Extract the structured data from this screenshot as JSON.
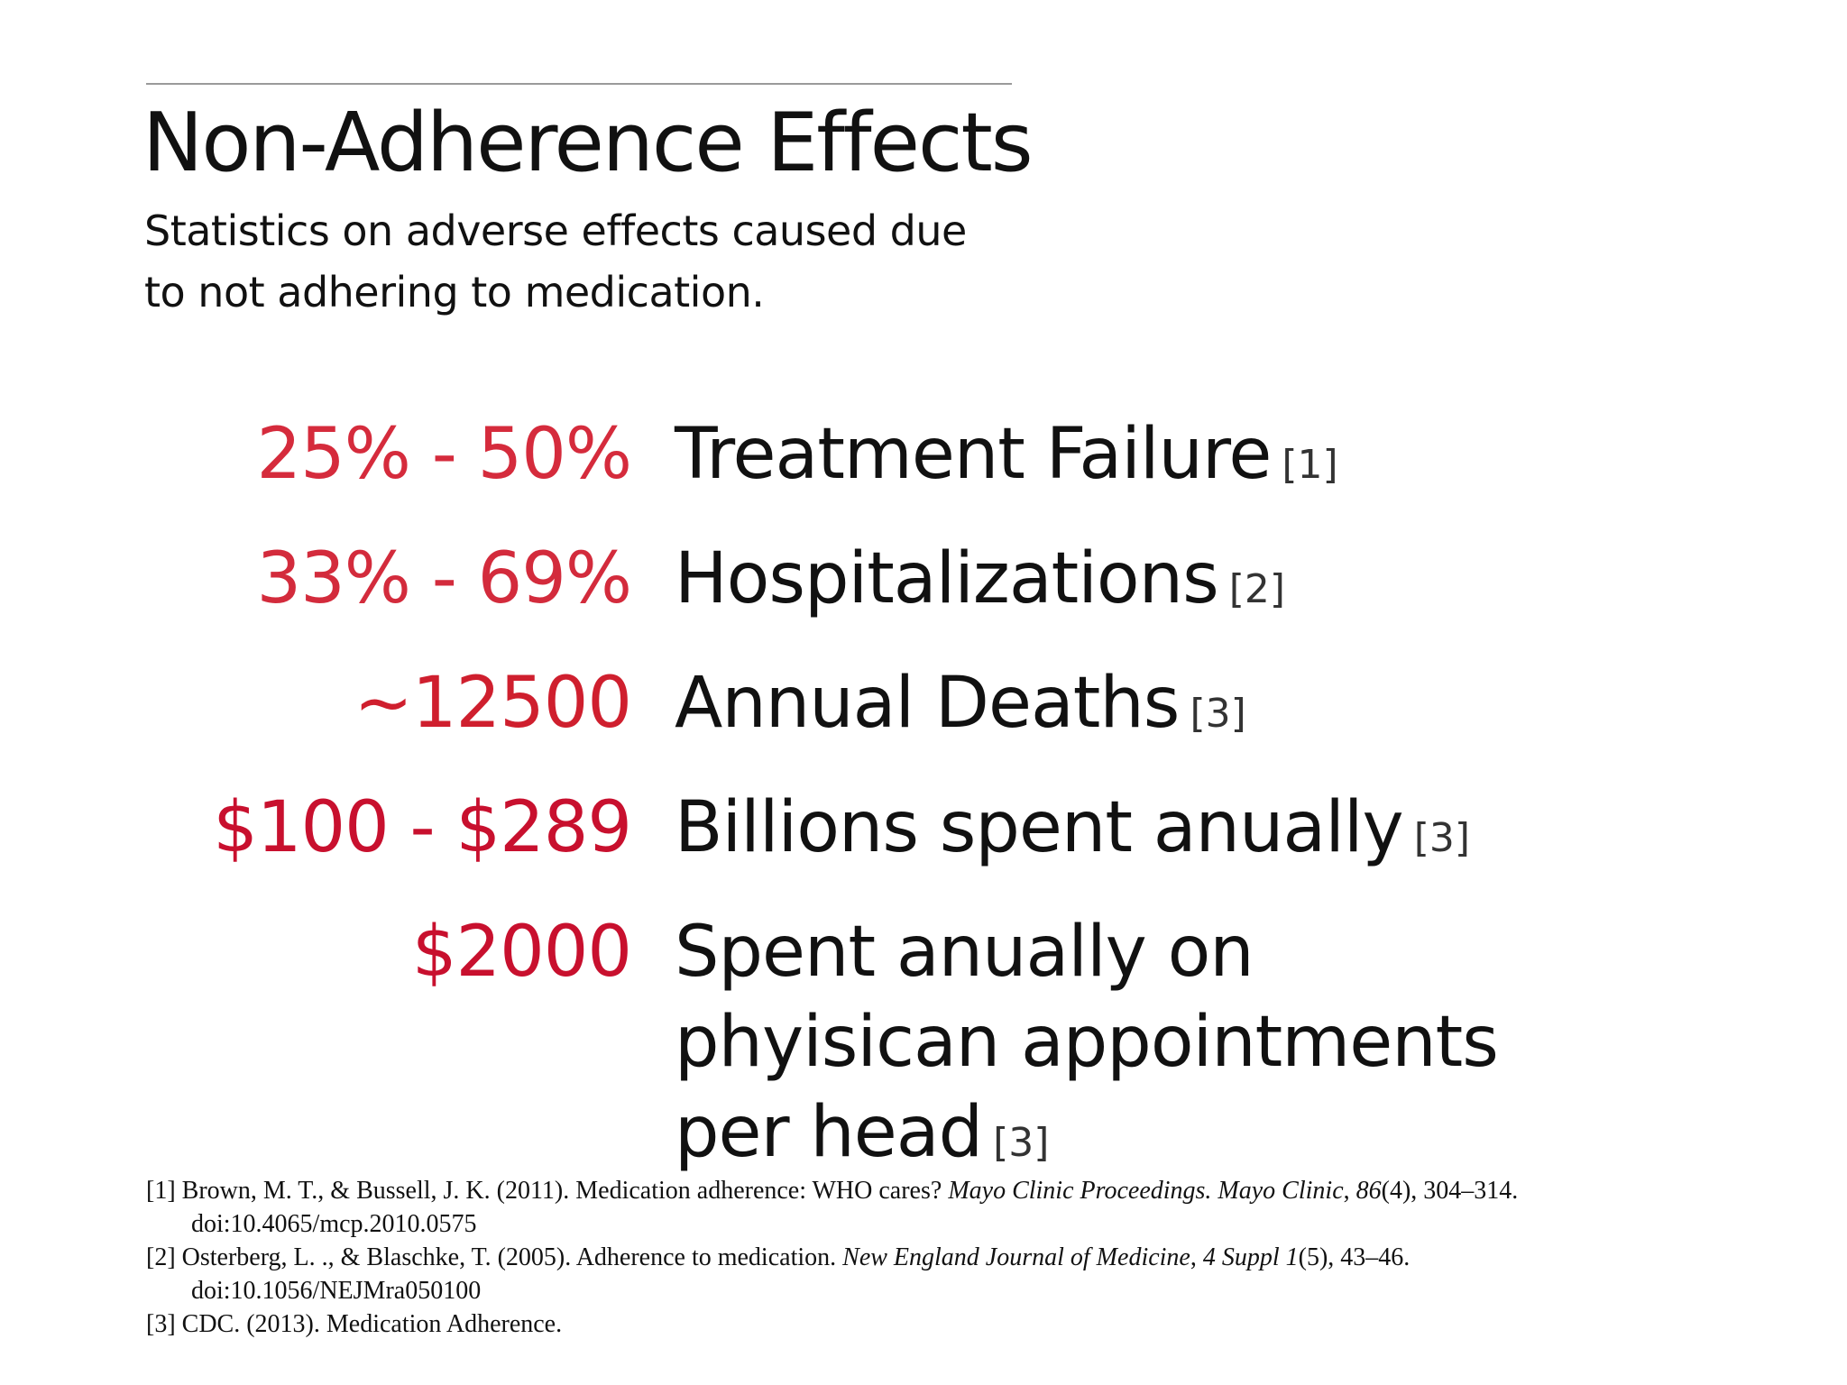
{
  "slide": {
    "title": "Non-Adherence Effects",
    "subtitle": "Statistics on adverse effects caused due to not adhering to medication.",
    "colors": {
      "stat_values": [
        "#d52b3c",
        "#d32b3c",
        "#cf1f2e",
        "#c8102e",
        "#c8102e"
      ],
      "text": "#111111",
      "rule": "#9a9a9a"
    }
  },
  "stats": [
    {
      "value": "25% - 50%",
      "label": "Treatment Failure",
      "ref": "[1]"
    },
    {
      "value": "33% - 69%",
      "label": "Hospitalizations",
      "ref": "[2]"
    },
    {
      "value": "~12500",
      "label": "Annual Deaths",
      "ref": "[3]"
    },
    {
      "value": "$100 - $289",
      "label": "Billions spent anually",
      "ref": "[3]"
    },
    {
      "value": "$2000",
      "label": "Spent anually on phyisican appointments per head",
      "ref": "[3]"
    }
  ],
  "references": [
    {
      "num": "[1]",
      "before": "Brown, M. T., & Bussell, J. K. (2011). Medication adherence: WHO cares? ",
      "italic1": "Mayo Clinic Proceedings. Mayo Clinic",
      "middle": ", ",
      "italic2": "86",
      "after": "(4), 304–314. doi:10.4065/mcp.2010.0575"
    },
    {
      "num": "[2]",
      "before": "Osterberg, L. ., & Blaschke, T. (2005). Adherence to medication. ",
      "italic1": "New England Journal of Medicine",
      "middle": ", ",
      "italic2": "4 Suppl 1",
      "after": "(5), 43–46. doi:10.1056/NEJMra050100"
    },
    {
      "num": "[3]",
      "before": "CDC. (2013). Medication Adherence.",
      "italic1": "",
      "middle": "",
      "italic2": "",
      "after": ""
    }
  ]
}
